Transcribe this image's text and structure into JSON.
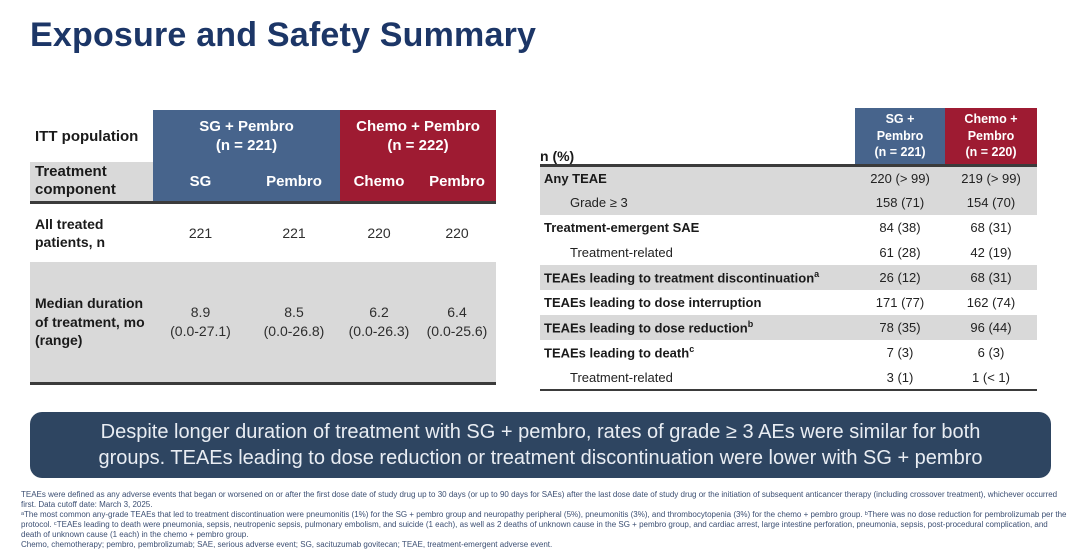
{
  "title": "Exposure and Safety Summary",
  "colors": {
    "title_navy": "#1c3667",
    "header_blue": "#47648c",
    "header_red": "#9e1b32",
    "row_gray": "#d9d9d9",
    "border_dark": "#3b3b3b",
    "box_navy": "#2e4561",
    "box_text": "#e9edf3",
    "footnote_blue": "#3c4f73"
  },
  "left_table": {
    "corner_label": "ITT population",
    "component_label": "Treatment component",
    "groups": [
      {
        "name": "SG + Pembro",
        "n": "(n = 221)"
      },
      {
        "name": "Chemo + Pembro",
        "n": "(n = 222)"
      }
    ],
    "component_cols": [
      "SG",
      "Pembro",
      "Chemo",
      "Pembro"
    ],
    "rows": [
      {
        "label": "All treated patients, n",
        "shaded": false,
        "values": [
          "221",
          "221",
          "220",
          "220"
        ]
      },
      {
        "label": "Median duration of treatment, mo (range)",
        "shaded": true,
        "values": [
          [
            "8.9",
            "(0.0-27.1)"
          ],
          [
            "8.5",
            "(0.0-26.8)"
          ],
          [
            "6.2",
            "(0.0-26.3)"
          ],
          [
            "6.4",
            "(0.0-25.6)"
          ]
        ]
      }
    ]
  },
  "right_table": {
    "corner_label": "n (%)",
    "groups": [
      {
        "lines": [
          "SG +",
          "Pembro",
          "(n = 221)"
        ]
      },
      {
        "lines": [
          "Chemo +",
          "Pembro",
          "(n = 220)"
        ]
      }
    ],
    "rows": [
      {
        "label": "Any TEAE",
        "sup": "",
        "bold": true,
        "indent": false,
        "shaded": true,
        "values": [
          "220 (> 99)",
          "219 (> 99)"
        ]
      },
      {
        "label": "Grade ≥ 3",
        "sup": "",
        "bold": false,
        "indent": true,
        "shaded": true,
        "values": [
          "158 (71)",
          "154 (70)"
        ]
      },
      {
        "label": "Treatment-emergent SAE",
        "sup": "",
        "bold": true,
        "indent": false,
        "shaded": false,
        "values": [
          "84 (38)",
          "68 (31)"
        ]
      },
      {
        "label": "Treatment-related",
        "sup": "",
        "bold": false,
        "indent": true,
        "shaded": false,
        "values": [
          "61 (28)",
          "42 (19)"
        ]
      },
      {
        "label": "TEAEs leading to treatment discontinuation",
        "sup": "a",
        "bold": true,
        "indent": false,
        "shaded": true,
        "values": [
          "26 (12)",
          "68 (31)"
        ]
      },
      {
        "label": "TEAEs leading to dose interruption",
        "sup": "",
        "bold": true,
        "indent": false,
        "shaded": false,
        "values": [
          "171 (77)",
          "162 (74)"
        ]
      },
      {
        "label": "TEAEs leading to dose reduction",
        "sup": "b",
        "bold": true,
        "indent": false,
        "shaded": true,
        "values": [
          "78 (35)",
          "96 (44)"
        ]
      },
      {
        "label": "TEAEs leading to death",
        "sup": "c",
        "bold": true,
        "indent": false,
        "shaded": false,
        "values": [
          "7 (3)",
          "6 (3)"
        ]
      },
      {
        "label": "Treatment-related",
        "sup": "",
        "bold": false,
        "indent": true,
        "shaded": false,
        "values": [
          "3 (1)",
          "1 (< 1)"
        ]
      }
    ]
  },
  "summary_box": {
    "line1": "Despite longer duration of treatment with SG + pembro, rates of grade ≥ 3 AEs were similar for both",
    "line2": "groups. TEAEs leading to dose reduction or treatment discontinuation were lower with SG + pembro"
  },
  "footnotes": [
    "TEAEs were defined as any adverse events that began or worsened on or after the first dose date of study drug up to 30 days (or up to 90 days for SAEs) after the last dose date of study drug or the initiation of subsequent anticancer therapy (including crossover treatment), whichever occurred first. Data cutoff date: March 3, 2025.",
    "ᵃThe most common any-grade TEAEs that led to treatment discontinuation were pneumonitis (1%) for the SG + pembro group and neuropathy peripheral (5%), pneumonitis (3%), and thrombocytopenia (3%) for the chemo + pembro group. ᵇThere was no dose reduction for pembrolizumab per the protocol. ᶜTEAEs leading to death were pneumonia, sepsis, neutropenic sepsis, pulmonary embolism, and suicide (1 each), as well as 2 deaths of unknown cause in the SG + pembro group, and cardiac arrest, large intestine perforation, pneumonia, sepsis, post-procedural complication, and death of unknown cause (1 each) in the chemo + pembro group.",
    "Chemo, chemotherapy; pembro, pembrolizumab; SAE, serious adverse event; SG, sacituzumab govitecan; TEAE, treatment-emergent adverse event."
  ]
}
